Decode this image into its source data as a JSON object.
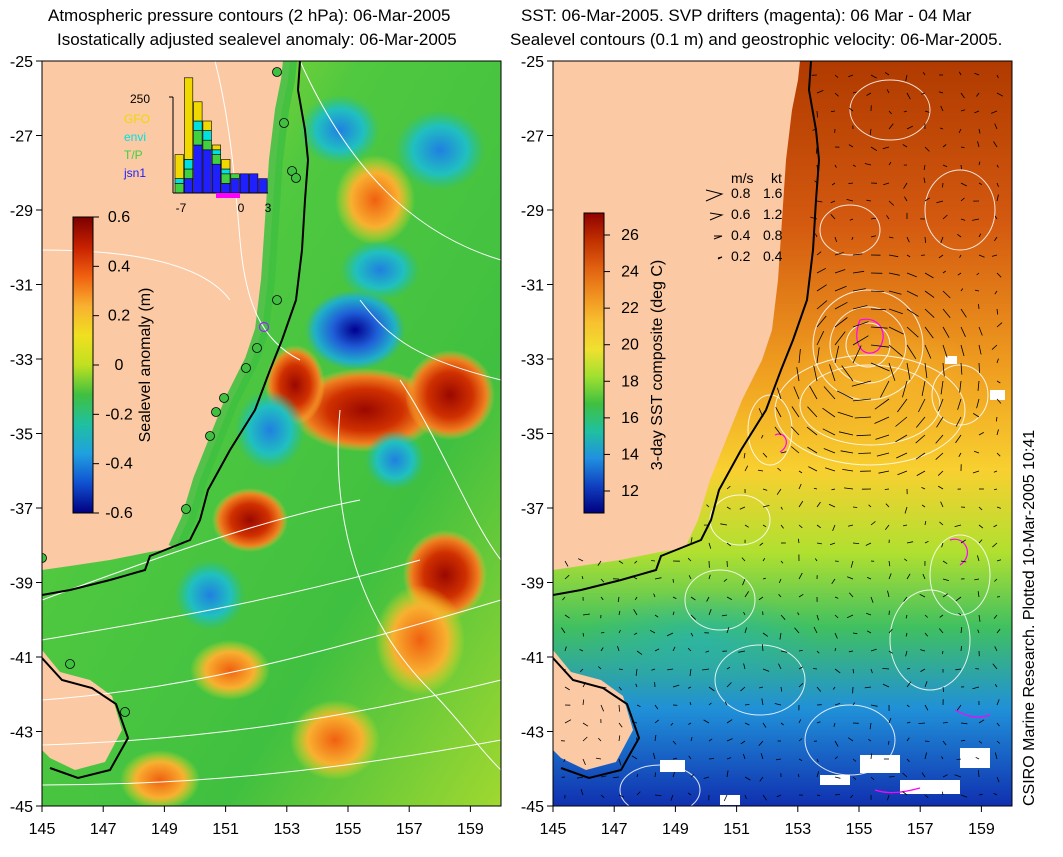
{
  "left_panel": {
    "title_line1": "Atmospheric pressure contours (2 hPa): 06-Mar-2005",
    "title_line2": "Isostatically adjusted sealevel anomaly: 06-Mar-2005",
    "colorbar": {
      "label": "Sealevel anomaly (m)",
      "ticks": [
        "0.6",
        "0.4",
        "0.2",
        "0",
        "-0.2",
        "-0.4",
        "-0.6"
      ],
      "colors": [
        "#7a0000",
        "#c62000",
        "#f06010",
        "#f8b030",
        "#f0e020",
        "#c0e020",
        "#40c040",
        "#20c0a0",
        "#20a0e0",
        "#1050d0",
        "#000080"
      ]
    },
    "histogram": {
      "max_label": "250",
      "x_ticks": [
        "-7",
        "0",
        "3"
      ],
      "legend": [
        {
          "label": "GFO",
          "color": "#f0d800"
        },
        {
          "label": "envi",
          "color": "#00e0e0"
        },
        {
          "label": "T/P",
          "color": "#40d040"
        },
        {
          "label": "jsn1",
          "color": "#2020ff"
        }
      ],
      "bars": [
        {
          "day": -7,
          "jsn1": 0.0,
          "tp": 0.1,
          "envi": 0.05,
          "gfo": 0.25
        },
        {
          "day": -6,
          "jsn1": 0.15,
          "tp": 0.1,
          "envi": 0.1,
          "gfo": 0.85
        },
        {
          "day": -5,
          "jsn1": 0.5,
          "tp": 0.15,
          "envi": 0.1,
          "gfo": 0.2
        },
        {
          "day": -4,
          "jsn1": 0.45,
          "tp": 0.1,
          "envi": 0.1,
          "gfo": 0.1
        },
        {
          "day": -3,
          "jsn1": 0.3,
          "tp": 0.1,
          "envi": 0.05,
          "gfo": 0.05
        },
        {
          "day": -2,
          "jsn1": 0.1,
          "tp": 0.1,
          "envi": 0.05,
          "gfo": 0.1
        },
        {
          "day": -1,
          "jsn1": 0.15,
          "tp": 0.05,
          "envi": 0.0,
          "gfo": 0.0
        },
        {
          "day": 0,
          "jsn1": 0.2,
          "tp": 0.0,
          "envi": 0.0,
          "gfo": 0.0
        },
        {
          "day": 1,
          "jsn1": 0.2,
          "tp": 0.0,
          "envi": 0.0,
          "gfo": 0.0
        },
        {
          "day": 2,
          "jsn1": 0.15,
          "tp": 0.0,
          "envi": 0.0,
          "gfo": 0.0
        }
      ]
    }
  },
  "right_panel": {
    "title_line1": "SST: 06-Mar-2005. SVP drifters (magenta): 06 Mar - 04 Mar",
    "title_line2": "Sealevel contours (0.1 m) and geostrophic velocity: 06-Mar-2005.",
    "colorbar": {
      "label": "3-day SST composite (deg C)",
      "ticks": [
        "26",
        "24",
        "22",
        "20",
        "18",
        "16",
        "14",
        "12"
      ],
      "colors": [
        "#900000",
        "#c03000",
        "#e06010",
        "#f09020",
        "#f8c030",
        "#f0e030",
        "#a0e030",
        "#40c040",
        "#20c0a0",
        "#2090e0",
        "#1040c0",
        "#000080"
      ]
    },
    "velocity_legend": {
      "header_ms": "m/s",
      "header_kt": "kt",
      "rows": [
        {
          "ms": "0.8",
          "kt": "1.6"
        },
        {
          "ms": "0.6",
          "kt": "1.2"
        },
        {
          "ms": "0.4",
          "kt": "0.8"
        },
        {
          "ms": "0.2",
          "kt": "0.4"
        }
      ]
    },
    "credit": "CSIRO Marine Research. Plotted 10-Mar-2005 10:41"
  },
  "axes": {
    "lon_ticks": [
      "145",
      "147",
      "149",
      "151",
      "153",
      "155",
      "157",
      "159"
    ],
    "lat_ticks": [
      "-25",
      "-27",
      "-29",
      "-31",
      "-33",
      "-35",
      "-37",
      "-39",
      "-41",
      "-43",
      "-45"
    ],
    "lon_range": [
      145,
      160
    ],
    "lat_range": [
      -45,
      -25
    ]
  },
  "colors": {
    "land": "#fbc9a3",
    "coastline": "#000000",
    "contour": "#ffffff",
    "drifter": "#ff00ff"
  }
}
